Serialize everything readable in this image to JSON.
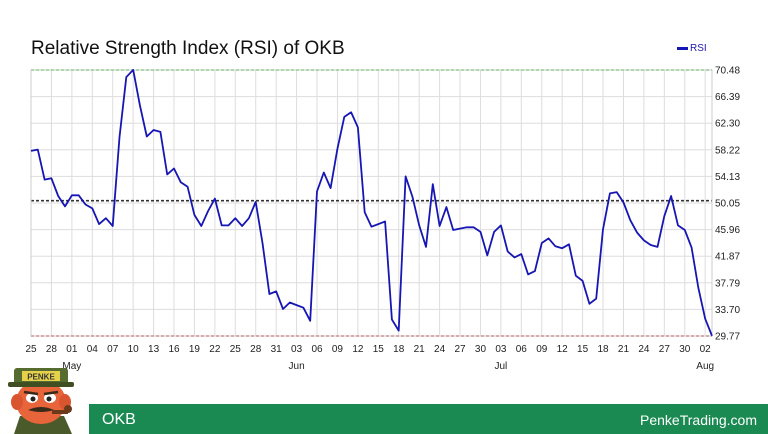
{
  "chart_data": {
    "type": "line",
    "title": "Relative Strength Index (RSI) of OKB",
    "xlabel": "",
    "ylabel": "",
    "ylim": [
      29.77,
      70.48
    ],
    "y_ticks": [
      "70.48",
      "66.39",
      "62.30",
      "58.22",
      "54.13",
      "50.05",
      "45.96",
      "41.87",
      "37.79",
      "33.70",
      "29.77"
    ],
    "x_ticks": [
      "25",
      "28",
      "01",
      "04",
      "07",
      "10",
      "13",
      "16",
      "19",
      "22",
      "25",
      "28",
      "31",
      "03",
      "06",
      "09",
      "12",
      "15",
      "18",
      "21",
      "24",
      "27",
      "30",
      "03",
      "06",
      "09",
      "12",
      "15",
      "18",
      "21",
      "24",
      "27",
      "30",
      "02"
    ],
    "x_ticks_step_days": 3,
    "month_labels": [
      {
        "label": "May",
        "tick_index": 2
      },
      {
        "label": "Jun",
        "tick_index": 13
      },
      {
        "label": "Jul",
        "tick_index": 23
      },
      {
        "label": "Aug",
        "tick_index": 33
      }
    ],
    "grid": true,
    "legend_position": "top-right",
    "reference_lines": [
      {
        "value": 70.48,
        "color": "#22cc22"
      },
      {
        "value": 50.48,
        "color": "#333333"
      },
      {
        "value": 29.77,
        "color": "#dd1111"
      }
    ],
    "series": [
      {
        "name": "RSI",
        "color": "#1616b4",
        "values": [
          58.1,
          58.3,
          53.7,
          53.9,
          51.2,
          49.6,
          51.3,
          51.3,
          49.9,
          49.3,
          46.9,
          47.8,
          46.6,
          60.2,
          69.4,
          70.5,
          65.0,
          60.3,
          61.3,
          61.0,
          54.5,
          55.4,
          53.3,
          52.6,
          48.3,
          46.6,
          48.9,
          50.8,
          46.7,
          46.7,
          47.8,
          46.6,
          47.8,
          50.3,
          44.0,
          36.2,
          36.6,
          33.9,
          34.9,
          34.5,
          34.1,
          32.1,
          51.9,
          54.8,
          52.4,
          58.4,
          63.3,
          64.0,
          61.7,
          48.7,
          46.5,
          46.9,
          47.3,
          32.3,
          30.6,
          54.2,
          51.1,
          46.7,
          43.4,
          53.0,
          46.6,
          49.5,
          46.0,
          46.2,
          46.4,
          46.4,
          45.7,
          42.1,
          45.7,
          46.7,
          42.7,
          41.8,
          42.3,
          39.2,
          39.7,
          44.0,
          44.7,
          43.5,
          43.2,
          43.8,
          39.0,
          38.2,
          34.7,
          35.5,
          46.1,
          51.6,
          51.8,
          50.2,
          47.5,
          45.6,
          44.4,
          43.7,
          43.4,
          48.1,
          51.2,
          46.7,
          46.0,
          43.3,
          37.1,
          32.4,
          29.8
        ]
      }
    ]
  },
  "footer": {
    "coin": "OKB",
    "site": "PenkeTrading.com"
  },
  "mascot": {
    "hat_text": "PENKE"
  }
}
